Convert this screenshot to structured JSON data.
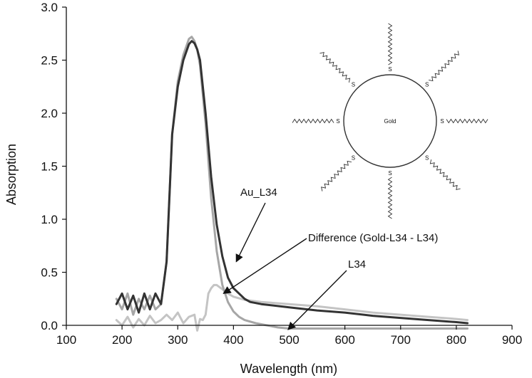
{
  "chart_data": {
    "type": "line",
    "xlabel": "Wavelength (nm)",
    "ylabel": "Absorption",
    "xlim": [
      100,
      900
    ],
    "ylim": [
      0.0,
      3.0
    ],
    "xticks": [
      100,
      200,
      300,
      400,
      500,
      600,
      700,
      800,
      900
    ],
    "yticks": [
      0.0,
      0.5,
      1.0,
      1.5,
      2.0,
      2.5,
      3.0
    ],
    "ytick_labels": [
      "0.0",
      "0.5",
      "1.0",
      "1.5",
      "2.0",
      "2.5",
      "3.0"
    ],
    "grid": false,
    "series": [
      {
        "color": "#333333",
        "x": [
          190,
          200,
          210,
          220,
          230,
          240,
          250,
          260,
          270,
          280,
          285,
          290,
          300,
          310,
          320,
          325,
          330,
          335,
          340,
          350,
          360,
          370,
          380,
          390,
          400,
          410,
          420,
          430,
          450,
          500,
          550,
          600,
          650,
          700,
          750,
          800,
          820
        ],
        "y": [
          0.2,
          0.3,
          0.15,
          0.28,
          0.12,
          0.3,
          0.15,
          0.3,
          0.2,
          0.6,
          1.2,
          1.8,
          2.25,
          2.5,
          2.65,
          2.68,
          2.66,
          2.6,
          2.5,
          2.0,
          1.4,
          0.95,
          0.65,
          0.45,
          0.35,
          0.3,
          0.25,
          0.22,
          0.2,
          0.17,
          0.14,
          0.12,
          0.09,
          0.07,
          0.05,
          0.03,
          0.02
        ]
      },
      {
        "color": "#a6a6a6",
        "x": [
          190,
          200,
          210,
          220,
          230,
          240,
          250,
          260,
          270,
          280,
          285,
          290,
          300,
          310,
          320,
          325,
          330,
          335,
          340,
          350,
          360,
          370,
          380,
          390,
          400,
          410,
          420,
          440,
          460,
          480,
          500,
          550,
          600,
          700,
          800,
          820
        ],
        "y": [
          0.25,
          0.15,
          0.3,
          0.1,
          0.25,
          0.15,
          0.28,
          0.15,
          0.2,
          0.6,
          1.2,
          1.8,
          2.3,
          2.55,
          2.7,
          2.72,
          2.68,
          2.6,
          2.45,
          1.9,
          1.2,
          0.7,
          0.38,
          0.22,
          0.13,
          0.08,
          0.05,
          0.02,
          0.0,
          -0.02,
          -0.03,
          -0.03,
          -0.03,
          -0.03,
          -0.03,
          -0.03
        ]
      },
      {
        "color": "#c4c4c4",
        "x": [
          190,
          200,
          210,
          220,
          230,
          240,
          250,
          260,
          270,
          280,
          290,
          300,
          310,
          320,
          330,
          335,
          340,
          345,
          350,
          355,
          360,
          365,
          370,
          380,
          390,
          400,
          420,
          450,
          500,
          550,
          600,
          650,
          700,
          750,
          800,
          820
        ],
        "y": [
          0.05,
          0.0,
          0.08,
          -0.02,
          0.06,
          0.0,
          0.09,
          0.02,
          0.05,
          0.1,
          0.05,
          0.12,
          0.02,
          0.08,
          0.1,
          -0.05,
          0.06,
          0.05,
          0.1,
          0.3,
          0.35,
          0.38,
          0.38,
          0.34,
          0.3,
          0.27,
          0.24,
          0.22,
          0.2,
          0.18,
          0.15,
          0.12,
          0.1,
          0.08,
          0.06,
          0.05
        ]
      }
    ],
    "annotations": [
      {
        "text": "Au_L34",
        "x": 405,
        "y": 0.6
      },
      {
        "text": "Difference (Gold-L34 - L34)",
        "x": 380,
        "y": 0.3
      },
      {
        "text": "L34",
        "x": 500,
        "y": -0.04
      }
    ],
    "inset": {
      "core_label": "Gold",
      "ligand_atom": "S",
      "ligand_count": 8
    }
  }
}
